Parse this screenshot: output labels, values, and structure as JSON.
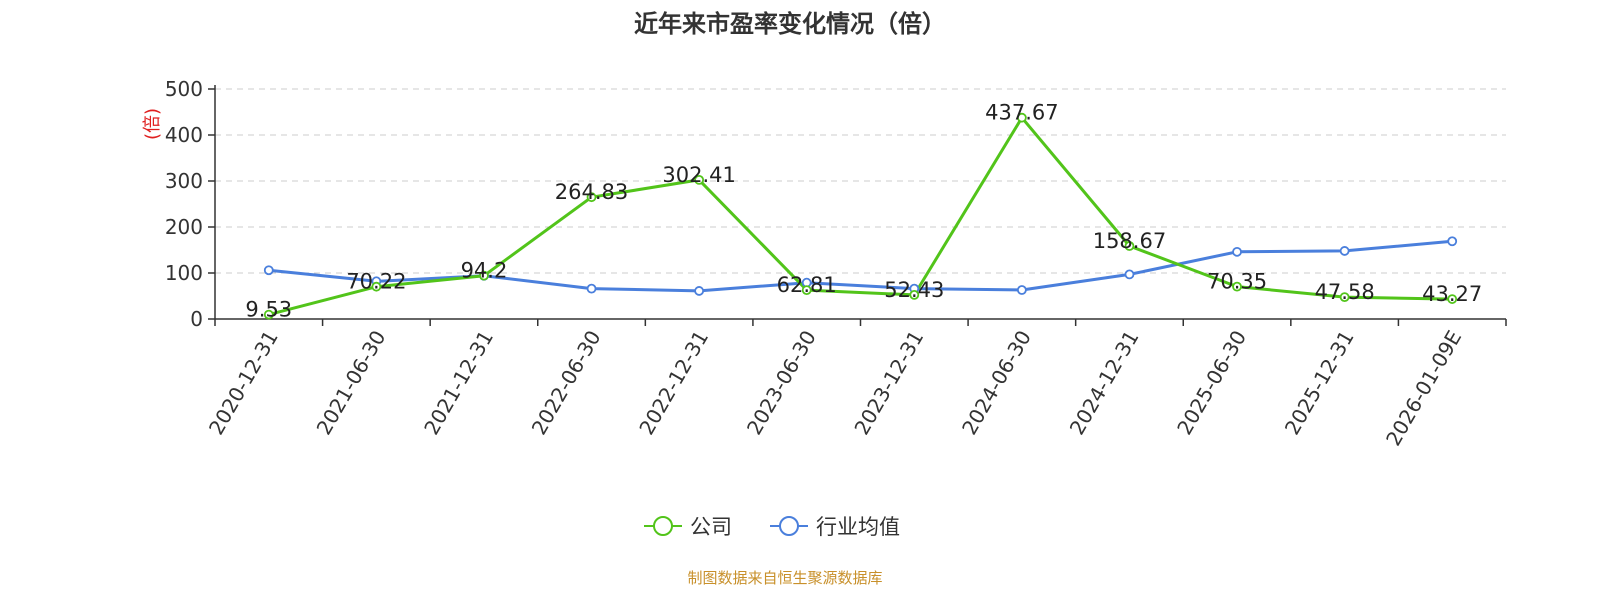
{
  "chart_data": {
    "type": "line",
    "title": "近年来市盈率变化情况（倍）",
    "ylabel": "(倍)",
    "ylim": [
      0,
      500
    ],
    "yticks": [
      0,
      100,
      200,
      300,
      400,
      500
    ],
    "grid": true,
    "legend_position": "bottom",
    "categories": [
      "2020-12-31",
      "2021-06-30",
      "2021-12-31",
      "2022-06-30",
      "2022-12-31",
      "2023-06-30",
      "2023-12-31",
      "2024-06-30",
      "2024-12-31",
      "2025-06-30",
      "2025-12-31",
      "2026-01-09E"
    ],
    "series": [
      {
        "name": "公司",
        "color": "#52c41a",
        "values": [
          9.53,
          70.22,
          94.2,
          264.83,
          302.41,
          62.81,
          52.43,
          437.67,
          158.67,
          70.35,
          47.58,
          43.27
        ],
        "labels": [
          "9.53",
          "70.22",
          "94.2",
          "264.83",
          "302.41",
          "62.81",
          "52.43",
          "437.67",
          "158.67",
          "70.35",
          "47.58",
          "43.27"
        ]
      },
      {
        "name": "行业均值",
        "color": "#4a7fdc",
        "values": [
          106,
          82,
          94,
          66,
          61,
          79,
          66,
          63,
          97,
          146,
          148,
          169
        ]
      }
    ],
    "source": "制图数据来自恒生聚源数据库",
    "unit_color": "#e02020",
    "source_color": "#c8902a"
  }
}
